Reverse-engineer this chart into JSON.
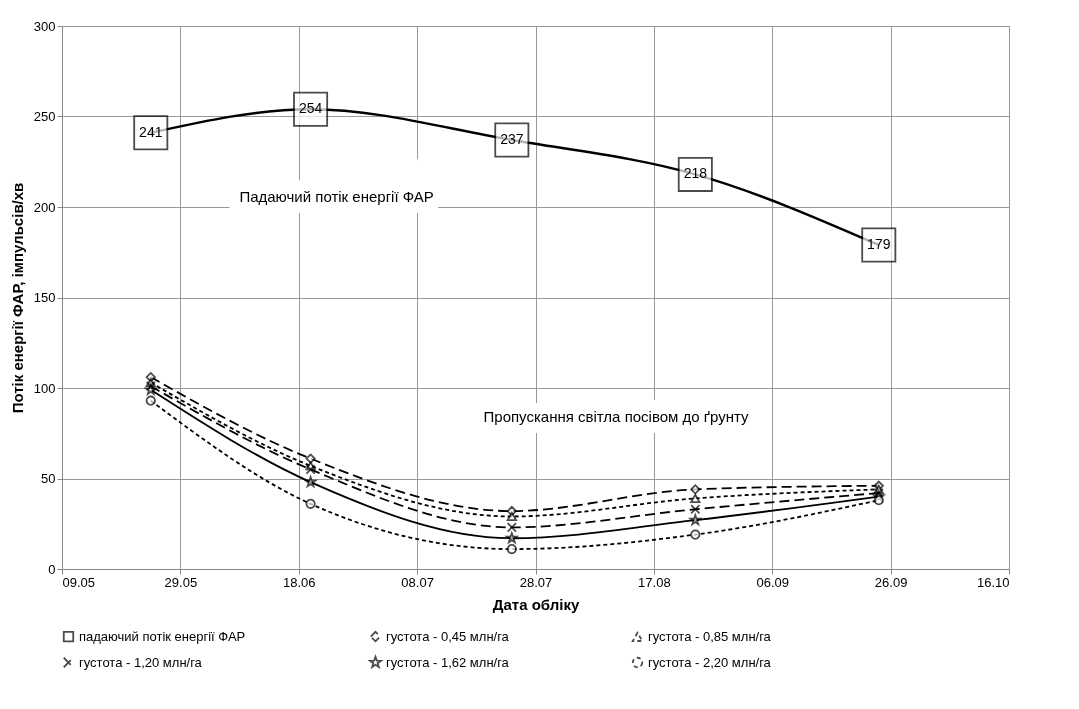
{
  "chart_data": {
    "type": "line",
    "xlabel": "Дата обліку",
    "ylabel": "Потік енергії ФАР, імпульсів/хв",
    "x": [
      "--05-24",
      "--06-20",
      "--07-24",
      "--08-24",
      "--09-24"
    ],
    "series": [
      {
        "name": "падаючий потік енергії ФАР",
        "color": "#000000",
        "values": [
          241,
          254,
          237,
          218,
          179
        ],
        "marker": "square",
        "line_style": "solid",
        "value_labels": [
          "241",
          "254",
          "237",
          "218",
          "179"
        ]
      },
      {
        "name": "густота - 0,45 млн/га",
        "color": "#000000",
        "values": [
          106,
          61,
          32,
          44,
          46
        ],
        "marker": "diamond",
        "line_style": "dashed"
      },
      {
        "name": "густота - 0,85 млн/га",
        "color": "#000000",
        "values": [
          103,
          57,
          29,
          39,
          44
        ],
        "marker": "triangle",
        "line_style": "dotted"
      },
      {
        "name": "густота - 1,20 млн/га",
        "color": "#000000",
        "values": [
          101,
          55,
          23,
          33,
          42
        ],
        "marker": "cross",
        "line_style": "dashed"
      },
      {
        "name": "густота - 1,62 млн/га",
        "color": "#000000",
        "values": [
          99,
          48,
          17,
          27,
          40
        ],
        "marker": "star",
        "line_style": "solid"
      },
      {
        "name": "густота - 2,20 млн/га",
        "color": "#000000",
        "values": [
          93,
          36,
          11,
          19,
          38
        ],
        "marker": "circle",
        "line_style": "dotted"
      }
    ],
    "annotations": [
      "Падаючий потік енергії ФАР",
      "Пропускання світла посівом до ґрунту"
    ],
    "xlim": [
      "--05-09",
      "--10-16"
    ],
    "xticks": [
      {
        "value": "--05-09",
        "label": "09.05"
      },
      {
        "value": "--05-29",
        "label": "29.05"
      },
      {
        "value": "--06-18",
        "label": "18.06"
      },
      {
        "value": "--07-08",
        "label": "08.07"
      },
      {
        "value": "--07-28",
        "label": "28.07"
      },
      {
        "value": "--08-17",
        "label": "17.08"
      },
      {
        "value": "--09-06",
        "label": "06.09"
      },
      {
        "value": "--09-26",
        "label": "26.09"
      },
      {
        "value": "--10-16",
        "label": "16.10"
      }
    ],
    "ylim": [
      0,
      300
    ],
    "yticks": [
      0,
      50,
      100,
      150,
      200,
      250,
      300
    ],
    "grid": true,
    "legend": "bottom"
  }
}
